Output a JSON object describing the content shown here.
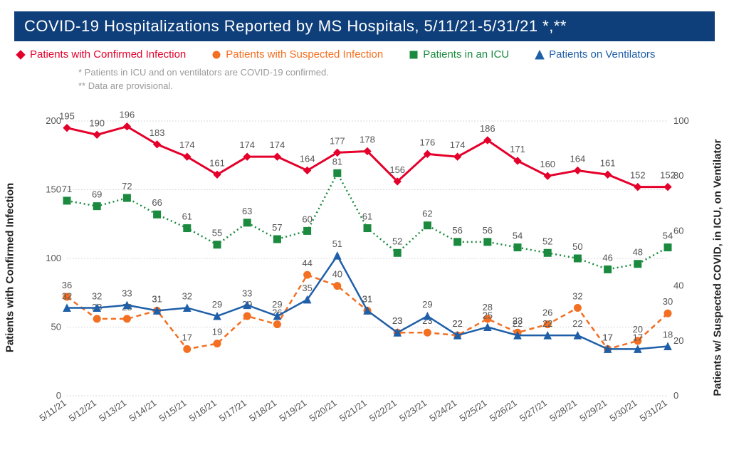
{
  "title": "COVID-19 Hospitalizations Reported by MS Hospitals, 5/11/21-5/31/21 *,**",
  "notes": [
    "* Patients in ICU and on ventilators are COVID-19 confirmed.",
    "** Data are provisional."
  ],
  "background_color": "#ffffff",
  "title_bg": "#0f3f7a",
  "title_color": "#ffffff",
  "grid_color": "#d9d9d9",
  "tick_color": "#555555",
  "legend_fontsize": 15,
  "title_fontsize": 22,
  "label_fontsize": 11,
  "dates": [
    "5/11/21",
    "5/12/21",
    "5/13/21",
    "5/14/21",
    "5/15/21",
    "5/16/21",
    "5/17/21",
    "5/18/21",
    "5/19/21",
    "5/20/21",
    "5/21/21",
    "5/22/21",
    "5/23/21",
    "5/24/21",
    "5/25/21",
    "5/26/21",
    "5/27/21",
    "5/28/21",
    "5/29/21",
    "5/30/21",
    "5/31/21"
  ],
  "axis_left": {
    "label": "Patients with Confirmed Infection",
    "min": 0,
    "max": 200,
    "step": 50
  },
  "axis_right": {
    "label": "Patients w/ Suspected COVID, in ICU, on Ventilator",
    "min": 0,
    "max": 100,
    "step": 20
  },
  "series": [
    {
      "key": "confirmed",
      "name": "Patients with Confirmed Infection",
      "axis": "left",
      "color": "#e4002b",
      "marker": "diamond",
      "marker_fill": "#e4002b",
      "line_style": "solid",
      "line_width": 3,
      "values": [
        195,
        190,
        196,
        183,
        174,
        161,
        174,
        174,
        164,
        177,
        178,
        156,
        176,
        174,
        186,
        171,
        160,
        164,
        161,
        152,
        152
      ],
      "label_color": "#e4002b",
      "label_dy": -12
    },
    {
      "key": "suspected",
      "name": "Patients with Suspected Infection",
      "axis": "right",
      "color": "#f36f21",
      "marker": "circle",
      "marker_fill": "#f36f21",
      "line_style": "dashed",
      "line_width": 2.5,
      "values": [
        36,
        28,
        28,
        31,
        17,
        19,
        29,
        26,
        44,
        40,
        31,
        23,
        23,
        22,
        28,
        23,
        26,
        32,
        17,
        20,
        30
      ],
      "label_color": "#f36f21",
      "label_dy": -12
    },
    {
      "key": "icu",
      "name": "Patients in an ICU",
      "axis": "right",
      "color": "#1b8a3f",
      "marker": "square",
      "marker_fill": "#1b8a3f",
      "line_style": "dotted",
      "line_width": 2.5,
      "values": [
        71,
        69,
        72,
        66,
        61,
        55,
        63,
        57,
        60,
        81,
        61,
        52,
        62,
        56,
        56,
        54,
        52,
        50,
        46,
        48,
        54
      ],
      "label_color": "#1b8a3f",
      "label_dy": -12
    },
    {
      "key": "vent",
      "name": "Patients on Ventilators",
      "axis": "right",
      "color": "#1f5fa8",
      "marker": "triangle",
      "marker_fill": "#1f5fa8",
      "line_style": "solid",
      "line_width": 2.5,
      "values": [
        32,
        32,
        33,
        31,
        32,
        29,
        33,
        29,
        35,
        51,
        31,
        23,
        29,
        22,
        25,
        22,
        22,
        22,
        17,
        17,
        18
      ],
      "label_color": "#1f5fa8",
      "label_dy": -12
    }
  ]
}
